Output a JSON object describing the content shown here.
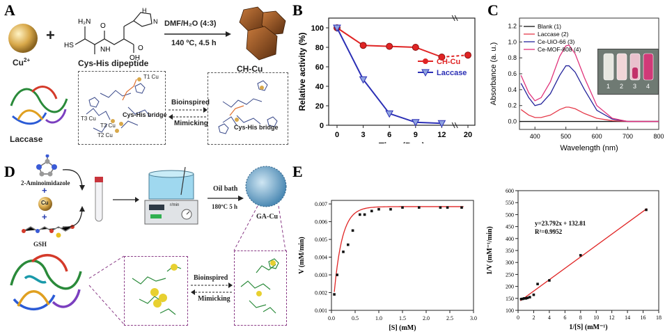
{
  "panels": {
    "a": "A",
    "b": "B",
    "c": "C",
    "d": "D",
    "e": "E"
  },
  "panelA": {
    "cu_label": "Cu",
    "cu_charge": "2+",
    "plus": "+",
    "dipeptide_label": "Cys-His dipeptide",
    "reaction_conditions_top": "DMF/H₂O (4:3)",
    "reaction_conditions_bottom": "140 ºC, 4.5 h",
    "product_label": "CH-Cu",
    "enzyme_label": "Laccase",
    "bioinspired": "Bioinspired",
    "mimicking": "Mimicking",
    "cys_his_bridge_left": "Cys-His bridge",
    "cys_his_bridge_right": "Cys-His bridge",
    "t1": "T1 Cu",
    "t3a": "T3 Cu",
    "t3b": "T3 Cu",
    "t2": "T2 Cu",
    "atoms": {
      "hs": "HS",
      "h2n": "H₂N",
      "nh": "NH",
      "oh": "OH",
      "o1": "O",
      "o2": "O",
      "n": "N",
      "hn": "H"
    }
  },
  "panelD": {
    "aminoimidazole": "2-Aminoimidazole",
    "cu_label": "Cu",
    "gsh_label": "GSH",
    "oil_bath": "Oil bath",
    "conditions": "180ºC 5 h",
    "product_label": "GA-Cu",
    "bioinspired": "Bioinspired",
    "mimicking": "Mimicking",
    "plus1": "+",
    "plus2": "+",
    "stirrer_unit": "r/min"
  },
  "chart_data": [
    {
      "type": "line",
      "panel": "B",
      "xlabel": "Time (Day)",
      "ylabel": "Relative activity (%)",
      "x_ticks": [
        "0",
        "3",
        "6",
        "9",
        "12",
        "20"
      ],
      "y_ticks": [
        "0",
        "20",
        "40",
        "60",
        "80",
        "100"
      ],
      "ylim": [
        0,
        110
      ],
      "axis_break": true,
      "legend_position": "right",
      "series": [
        {
          "name": "CH-Cu",
          "color": "#e02424",
          "marker": "circle",
          "x": [
            "0",
            "3",
            "6",
            "9",
            "12",
            "20"
          ],
          "y": [
            100,
            82,
            81,
            80,
            70,
            72
          ]
        },
        {
          "name": "Laccase",
          "color": "#2b2fb5",
          "marker": "triangle-down",
          "x": [
            "0",
            "3",
            "6",
            "9",
            "12"
          ],
          "y": [
            100,
            47,
            12,
            3,
            2
          ]
        }
      ]
    },
    {
      "type": "line",
      "panel": "C",
      "xlabel": "Wavelength (nm)",
      "ylabel": "Absorbance (a. u.)",
      "xlim": [
        350,
        800
      ],
      "ylim": [
        -0.1,
        1.3
      ],
      "x_ticks": [
        "400",
        "500",
        "600",
        "700",
        "800"
      ],
      "y_ticks": [
        "0.0",
        "0.2",
        "0.4",
        "0.6",
        "0.8",
        "1.0",
        "1.2"
      ],
      "legend_position": "top-left",
      "inset_vial_labels": [
        "1",
        "2",
        "3",
        "4"
      ],
      "series": [
        {
          "name": "Blank (1)",
          "color": "#111111",
          "x": [
            350,
            400,
            450,
            500,
            550,
            600,
            650,
            700,
            750,
            800
          ],
          "y": [
            0.0,
            0.0,
            0.0,
            0.0,
            0.0,
            0.0,
            0.0,
            0.0,
            0.0,
            0.0
          ]
        },
        {
          "name": "Laccase (2)",
          "color": "#e53a4a",
          "x": [
            355,
            380,
            400,
            420,
            450,
            480,
            500,
            510,
            530,
            560,
            600,
            650,
            700,
            800
          ],
          "y": [
            0.15,
            0.08,
            0.05,
            0.05,
            0.08,
            0.15,
            0.18,
            0.18,
            0.16,
            0.1,
            0.04,
            0.01,
            0.0,
            0.0
          ]
        },
        {
          "name": "Ce-UiO-66 (3)",
          "color": "#22229a",
          "x": [
            355,
            380,
            400,
            420,
            450,
            480,
            500,
            510,
            530,
            560,
            600,
            650,
            700,
            800
          ],
          "y": [
            0.48,
            0.3,
            0.2,
            0.22,
            0.35,
            0.58,
            0.7,
            0.7,
            0.62,
            0.4,
            0.14,
            0.03,
            0.0,
            0.0
          ]
        },
        {
          "name": "Ce-MOF-808 (4)",
          "color": "#e0337a",
          "x": [
            355,
            380,
            400,
            420,
            450,
            480,
            500,
            510,
            530,
            560,
            600,
            650,
            700,
            800
          ],
          "y": [
            0.58,
            0.36,
            0.26,
            0.3,
            0.5,
            0.82,
            0.95,
            0.96,
            0.85,
            0.55,
            0.2,
            0.04,
            0.0,
            0.0
          ]
        }
      ]
    },
    {
      "type": "scatter",
      "panel": "E-left",
      "xlabel": "[S] (mM)",
      "ylabel": "V (mM/min)",
      "xlim": [
        0,
        3.0
      ],
      "ylim": [
        0.001,
        0.0072
      ],
      "x_ticks": [
        "0.0",
        "0.5",
        "1.0",
        "1.5",
        "2.0",
        "2.5",
        "3.0"
      ],
      "y_ticks": [
        "0.001",
        "0.002",
        "0.003",
        "0.004",
        "0.005",
        "0.006",
        "0.007"
      ],
      "points": {
        "x": [
          0.06,
          0.12,
          0.25,
          0.35,
          0.45,
          0.6,
          0.7,
          0.85,
          1.0,
          1.25,
          1.5,
          1.85,
          2.3,
          2.45,
          2.75
        ],
        "y": [
          0.0019,
          0.003,
          0.0043,
          0.0047,
          0.0055,
          0.0064,
          0.0064,
          0.0066,
          0.0067,
          0.0067,
          0.0068,
          0.0068,
          0.0068,
          0.0068,
          0.0068
        ]
      },
      "fit_color": "#e02424"
    },
    {
      "type": "scatter",
      "panel": "E-right",
      "xlabel": "1/[S] (mM⁻¹)",
      "ylabel": "1/V (mM⁻¹/min)",
      "xlim": [
        0,
        18
      ],
      "ylim": [
        100,
        600
      ],
      "x_ticks": [
        "0",
        "2",
        "4",
        "6",
        "8",
        "10",
        "12",
        "14",
        "16",
        "18"
      ],
      "y_ticks": [
        "100",
        "150",
        "200",
        "250",
        "300",
        "350",
        "400",
        "450",
        "500",
        "550",
        "600"
      ],
      "equation": "y=23.792x + 132.81",
      "r2": "R²=0.9952",
      "points": {
        "x": [
          0.4,
          0.6,
          0.8,
          1.0,
          1.2,
          1.5,
          2.0,
          2.5,
          4.0,
          8.0,
          16.4
        ],
        "y": [
          147,
          148,
          150,
          150,
          152,
          155,
          165,
          210,
          225,
          330,
          520
        ]
      },
      "fit": {
        "slope": 23.792,
        "intercept": 132.81
      },
      "fit_color": "#e02424"
    }
  ]
}
